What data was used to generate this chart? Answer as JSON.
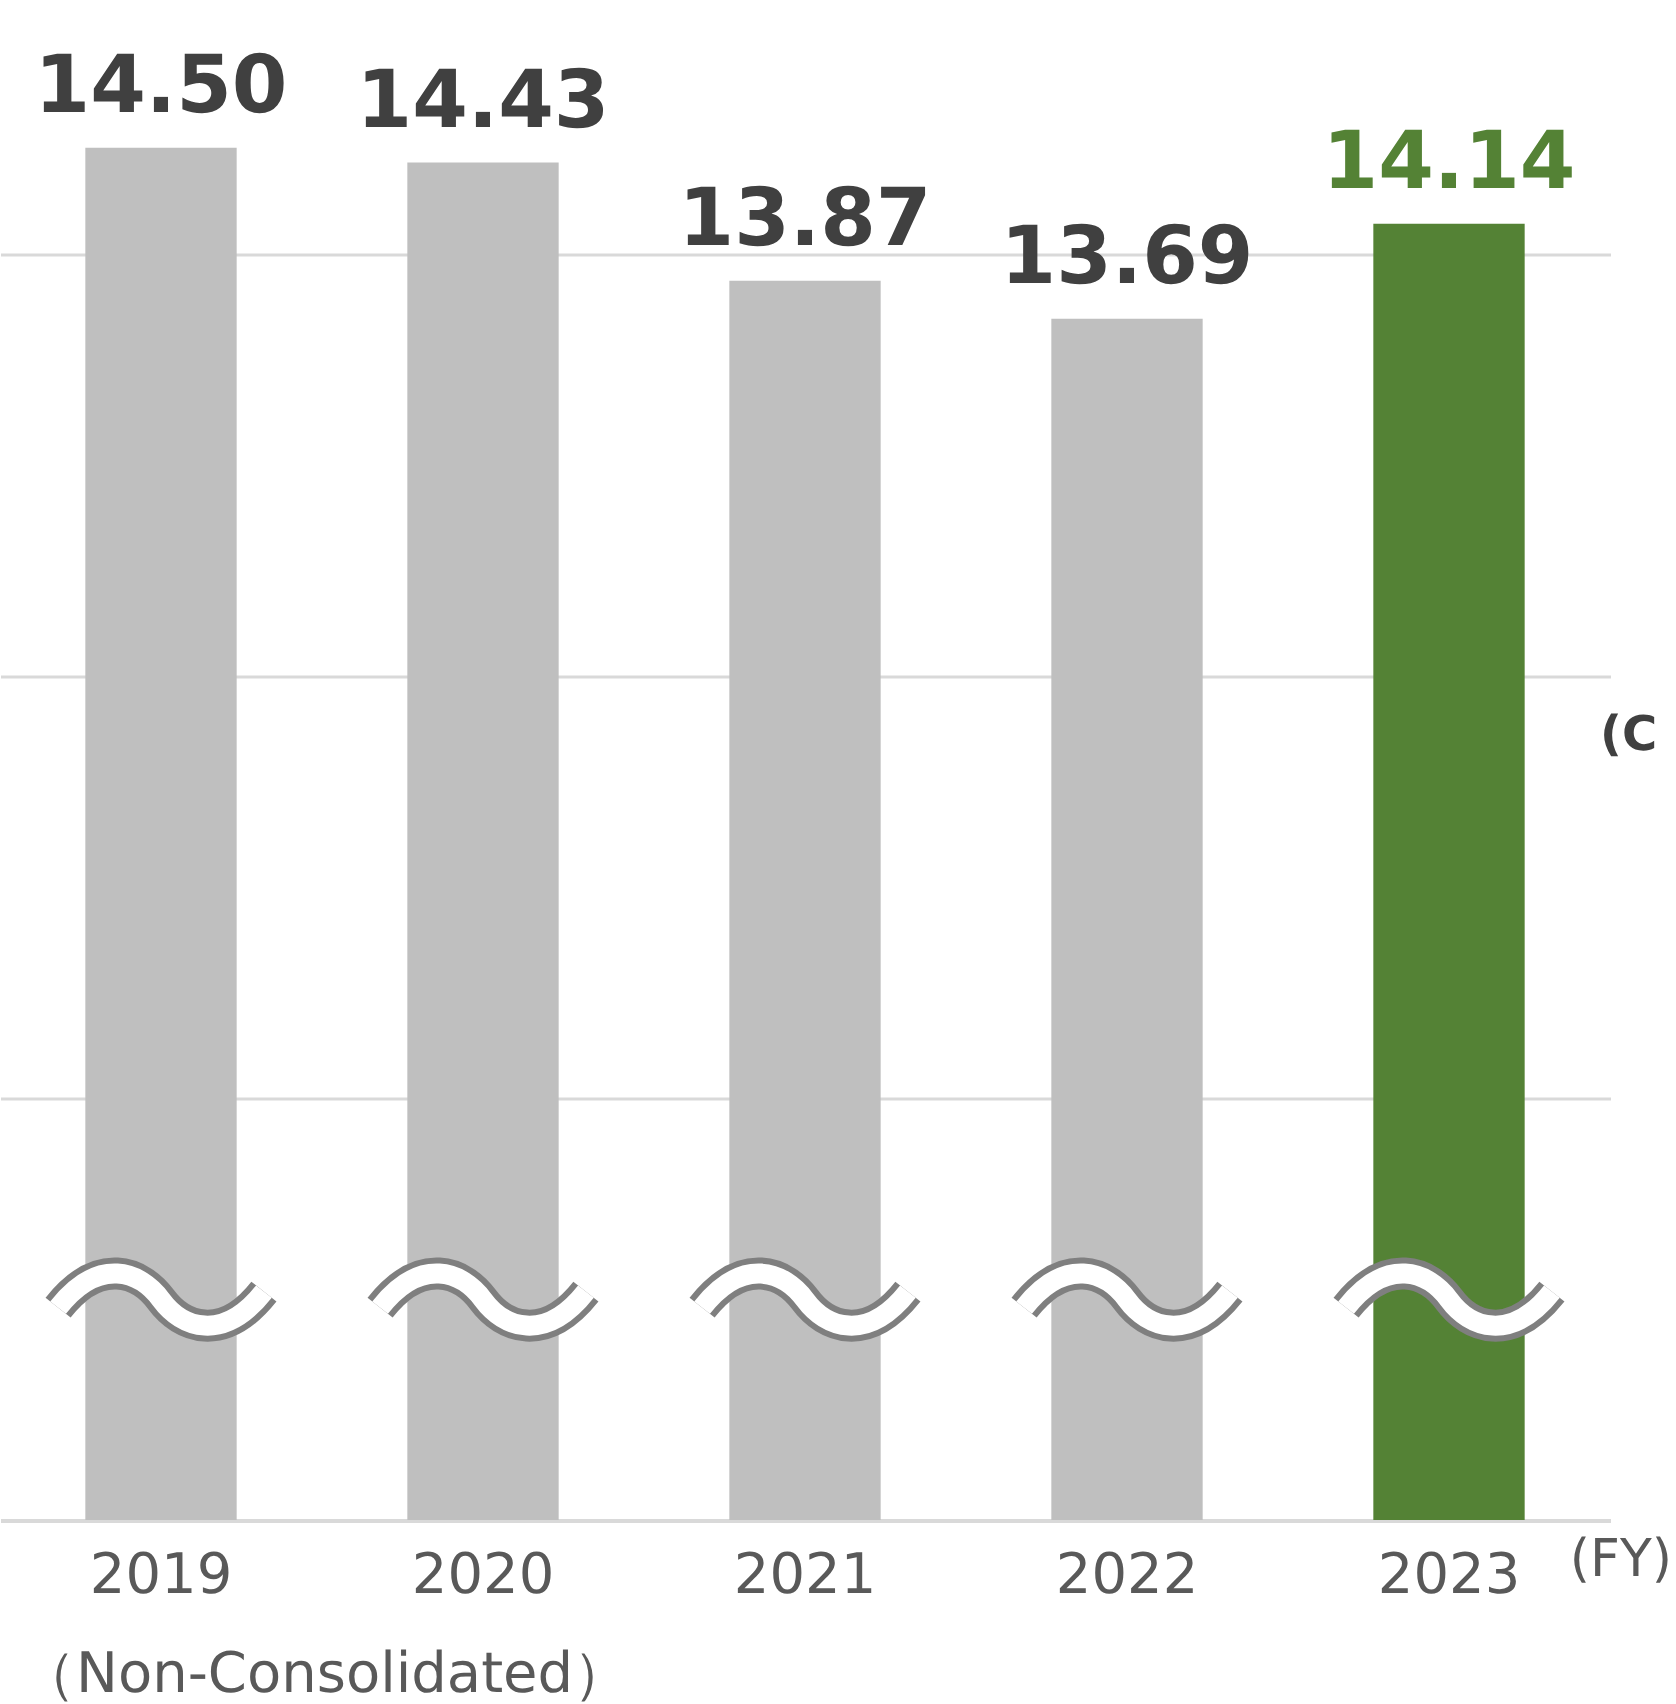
{
  "chart_data": {
    "type": "bar",
    "categories": [
      "2019",
      "2020",
      "2021",
      "2022",
      "2023"
    ],
    "values": [
      14.5,
      14.43,
      13.87,
      13.69,
      14.14
    ],
    "colors": [
      "#bfbfbf",
      "#bfbfbf",
      "#bfbfbf",
      "#bfbfbf",
      "#548235"
    ],
    "ylim": [
      8,
      15.2
    ],
    "yticks": [
      8,
      10,
      12,
      14
    ],
    "grid": "y",
    "tick_labels": "x",
    "value_labels": [
      "14.50",
      "14.43",
      "13.87",
      "13.69",
      "14.14"
    ],
    "annotations": [
      "(FY)",
      "（Non-Consolidated）",
      "(C"
    ]
  }
}
